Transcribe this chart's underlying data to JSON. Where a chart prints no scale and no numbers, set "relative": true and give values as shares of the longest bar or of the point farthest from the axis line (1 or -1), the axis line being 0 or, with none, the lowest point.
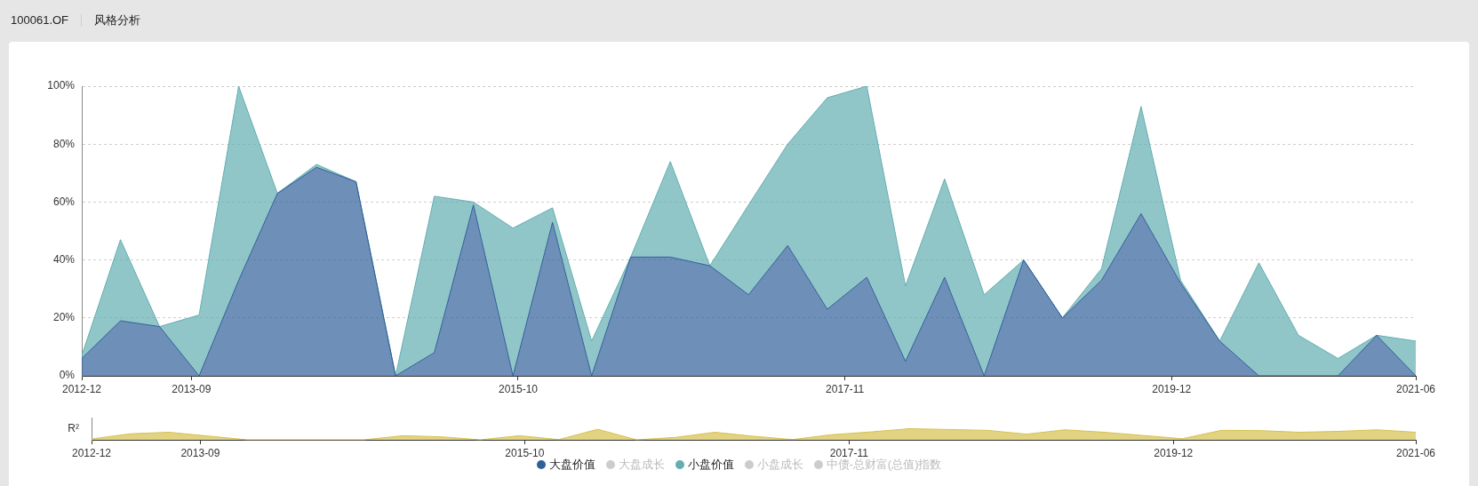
{
  "chart_data": [
    {
      "type": "area",
      "title": "100061.OF",
      "subtitle": "风格分析",
      "x": [
        "2012-12-31",
        "2013-03-31",
        "2013-06-30",
        "2013-09-30",
        "2013-12-31",
        "2014-03-31",
        "2014-06-30",
        "2014-09-30",
        "2014-12-31",
        "2015-03-31",
        "2015-06-30",
        "2015-09-30",
        "2015-12-31",
        "2016-03-31",
        "2016-06-30",
        "2016-09-30",
        "2016-12-31",
        "2017-03-31",
        "2017-06-30",
        "2017-09-30",
        "2017-12-31",
        "2018-03-31",
        "2018-06-30",
        "2018-09-30",
        "2018-12-31",
        "2019-03-31",
        "2019-06-30",
        "2019-09-30",
        "2019-12-31",
        "2020-03-31",
        "2020-06-30",
        "2020-09-30",
        "2020-12-31",
        "2021-03-31",
        "2021-06-30"
      ],
      "xlim": [
        "2012-12-31",
        "2021-06-30"
      ],
      "xticks": [
        {
          "value": "2012-12-31",
          "label": "2012-12"
        },
        {
          "value": "2013-09-12",
          "label": "2013-09"
        },
        {
          "value": "2015-10-12",
          "label": "2015-10"
        },
        {
          "value": "2017-11-10",
          "label": "2017-11"
        },
        {
          "value": "2019-12-10",
          "label": "2019-12"
        },
        {
          "value": "2021-06-30",
          "label": "2021-06"
        }
      ],
      "ylim": [
        0,
        100
      ],
      "yticks": [
        {
          "value": 0,
          "label": "0%"
        },
        {
          "value": 20,
          "label": "20%"
        },
        {
          "value": 40,
          "label": "40%"
        },
        {
          "value": 60,
          "label": "60%"
        },
        {
          "value": 80,
          "label": "80%"
        },
        {
          "value": 100,
          "label": "100%"
        }
      ],
      "stacked": true,
      "grid": "y",
      "legend": "bottom",
      "series": [
        {
          "name": "大盘价值",
          "color": "#30609a",
          "values": [
            6,
            19,
            17,
            0,
            33,
            63,
            72,
            67,
            0,
            8,
            59,
            0,
            53,
            0,
            41,
            41,
            38,
            28,
            45,
            23,
            34,
            5,
            34,
            0,
            40,
            20,
            33,
            56,
            32,
            12,
            0,
            0,
            0,
            14,
            0
          ]
        },
        {
          "name": "大盘成长",
          "color": "#cccccc",
          "values": [
            null,
            null,
            null,
            null,
            null,
            null,
            null,
            null,
            null,
            null,
            null,
            null,
            null,
            null,
            null,
            null,
            null,
            null,
            null,
            null,
            null,
            null,
            null,
            null,
            null,
            null,
            null,
            null,
            null,
            null,
            null,
            null,
            null,
            null,
            null
          ]
        },
        {
          "name": "小盘价值",
          "color": "#63aeb1",
          "values": [
            1,
            28,
            0,
            21,
            67,
            0,
            1,
            0,
            0,
            54,
            1,
            51,
            5,
            12,
            0,
            33,
            0,
            31,
            35,
            73,
            66,
            26,
            34,
            28,
            0,
            0,
            4,
            37,
            1,
            0,
            39,
            14,
            6,
            0,
            12
          ]
        },
        {
          "name": "小盘成长",
          "color": "#cccccc",
          "values": [
            null,
            null,
            null,
            null,
            null,
            null,
            null,
            null,
            null,
            null,
            null,
            null,
            null,
            null,
            null,
            null,
            null,
            null,
            null,
            null,
            null,
            null,
            null,
            null,
            null,
            null,
            null,
            null,
            null,
            null,
            null,
            null,
            null,
            null,
            null
          ]
        },
        {
          "name": "中债-总财富(总值)指数",
          "color": "#cccccc",
          "values": [
            null,
            null,
            null,
            null,
            null,
            null,
            null,
            null,
            null,
            null,
            null,
            null,
            null,
            null,
            null,
            null,
            null,
            null,
            null,
            null,
            null,
            null,
            null,
            null,
            null,
            null,
            null,
            null,
            null,
            null,
            null,
            null,
            null,
            null,
            null
          ]
        }
      ]
    },
    {
      "type": "area",
      "ylabel": "R²",
      "relative": true,
      "x": [
        "2012-12-31",
        "2013-03-31",
        "2013-06-30",
        "2013-09-30",
        "2013-12-31",
        "2014-03-31",
        "2014-06-30",
        "2014-09-30",
        "2014-12-31",
        "2015-03-31",
        "2015-06-30",
        "2015-09-30",
        "2015-12-31",
        "2016-03-31",
        "2016-06-30",
        "2016-09-30",
        "2016-12-31",
        "2017-03-31",
        "2017-06-30",
        "2017-09-30",
        "2017-12-31",
        "2018-03-31",
        "2018-06-30",
        "2018-09-30",
        "2018-12-31",
        "2019-03-31",
        "2019-06-30",
        "2019-09-30",
        "2019-12-31",
        "2020-03-31",
        "2020-06-30",
        "2020-09-30",
        "2020-12-31",
        "2021-03-31",
        "2021-06-30"
      ],
      "xlim": [
        "2012-12-31",
        "2021-06-30"
      ],
      "xticks": [
        {
          "value": "2012-12-31",
          "label": "2012-12"
        },
        {
          "value": "2013-09-12",
          "label": "2013-09"
        },
        {
          "value": "2015-10-12",
          "label": "2015-10"
        },
        {
          "value": "2017-11-10",
          "label": "2017-11"
        },
        {
          "value": "2019-12-10",
          "label": "2019-12"
        },
        {
          "value": "2021-06-30",
          "label": "2021-06"
        }
      ],
      "color": "#d5c04f",
      "values": [
        0.07,
        0.54,
        0.68,
        0.34,
        0,
        0,
        0,
        0,
        0.37,
        0.27,
        0,
        0.37,
        0.02,
        0.95,
        0,
        0.22,
        0.68,
        0.32,
        0.02,
        0.46,
        0.71,
        1,
        0.93,
        0.85,
        0.51,
        0.9,
        0.68,
        0.39,
        0.1,
        0.85,
        0.83,
        0.68,
        0.76,
        0.9,
        0.68
      ]
    }
  ]
}
